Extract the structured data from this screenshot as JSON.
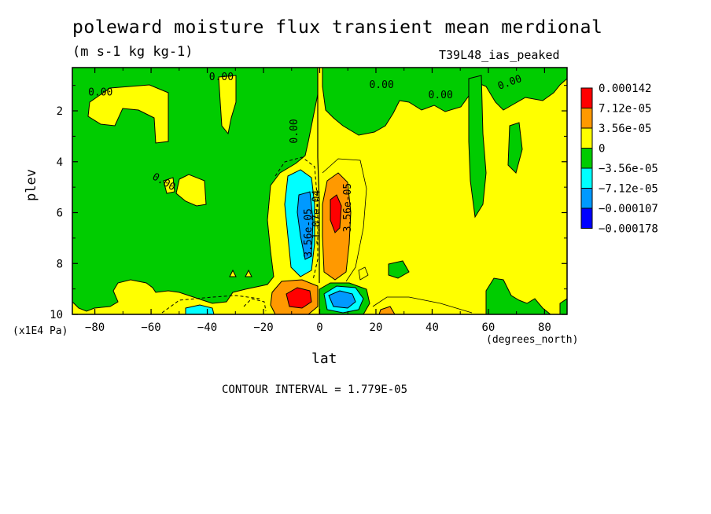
{
  "title": "poleward moisture flux transient mean merdional",
  "units": "(m s-1 kg kg-1)",
  "run_id": "T39L48_ias_peaked",
  "contour_interval": "CONTOUR INTERVAL = 1.779E-05",
  "chart_data": {
    "type": "heatmap",
    "x": {
      "label": "lat",
      "units_label": "(degrees_north)",
      "range": [
        -88,
        88
      ],
      "ticks": [
        -80,
        -60,
        -40,
        -20,
        0,
        20,
        40,
        60,
        80
      ],
      "tick_labels": [
        "−80",
        "−60",
        "−40",
        "−20",
        "0",
        "20",
        "40",
        "60",
        "80"
      ]
    },
    "y": {
      "label": "plev",
      "scale_label": "(x1E4 Pa)",
      "range": [
        0.3,
        10
      ],
      "inverted": true,
      "ticks": [
        2,
        4,
        6,
        8,
        10
      ],
      "tick_labels": [
        "2",
        "4",
        "6",
        "8",
        "10"
      ]
    },
    "colorbar": {
      "levels": [
        "0.000142",
        "7.12e-05",
        "3.56e-05",
        "0",
        "−3.56e-05",
        "−7.12e-05",
        "−0.000107",
        "−0.000178"
      ],
      "colors": [
        "#ff0000",
        "#ff9900",
        "#ffff00",
        "#00cc00",
        "#00ffff",
        "#0099ff",
        "#0000ff"
      ]
    },
    "contour_labels": [
      {
        "text": "0.00",
        "lon": -35,
        "p": 0.8
      },
      {
        "text": "0.00",
        "lon": -78,
        "p": 1.4
      },
      {
        "text": "0.00",
        "lon": 22,
        "p": 1.1
      },
      {
        "text": "0.00",
        "lon": 43,
        "p": 1.5
      },
      {
        "text": "0.00",
        "lon": 68,
        "p": 1.0
      },
      {
        "text": "0.00",
        "lon": -8,
        "p": 2.8
      },
      {
        "text": "0.00",
        "lon": -56,
        "p": 4.9
      },
      {
        "text": "3.56e-05",
        "lon": 11,
        "p": 5.8
      },
      {
        "text": "-1.07e-04",
        "lon": 0,
        "p": 6.2
      },
      {
        "text": "3.56e-05",
        "lon": -3,
        "p": 6.8
      }
    ]
  }
}
